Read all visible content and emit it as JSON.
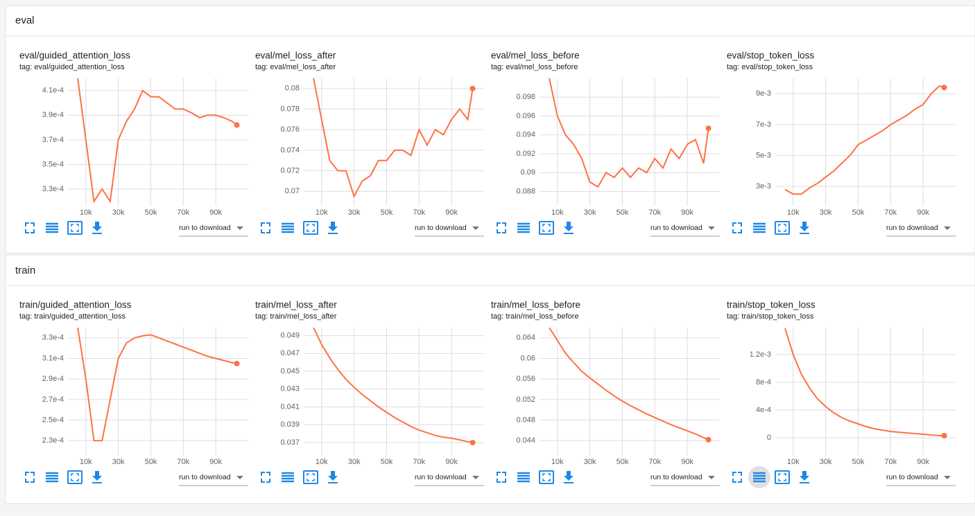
{
  "sections": [
    {
      "title": "eval"
    },
    {
      "title": "train"
    }
  ],
  "download_label": "run to download",
  "chart_data": [
    {
      "type": "line",
      "title": "eval/guided_attention_loss",
      "tag": "tag: eval/guided_attention_loss",
      "color": "#ff7043",
      "grid": true,
      "x": [
        5000,
        10000,
        15000,
        20000,
        25000,
        30000,
        35000,
        40000,
        45000,
        50000,
        55000,
        60000,
        65000,
        70000,
        75000,
        80000,
        85000,
        90000,
        95000,
        100000,
        103000
      ],
      "values": [
        0.00042,
        0.00037,
        0.00032,
        0.00033,
        0.00032,
        0.00037,
        0.000385,
        0.000395,
        0.00041,
        0.000405,
        0.000405,
        0.0004,
        0.000395,
        0.000395,
        0.000392,
        0.000388,
        0.00039,
        0.00039,
        0.000388,
        0.000385,
        0.000382
      ],
      "xlim": [
        -1000,
        110000
      ],
      "xticks": [
        {
          "value": 10000,
          "label": "10k"
        },
        {
          "value": 30000,
          "label": "30k"
        },
        {
          "value": 50000,
          "label": "50k"
        },
        {
          "value": 70000,
          "label": "70k"
        },
        {
          "value": 90000,
          "label": "90k"
        }
      ],
      "ylim": [
        0.0003165,
        0.00042
      ],
      "yticks": [
        {
          "value": 0.00033,
          "label": "3.3e-4"
        },
        {
          "value": 0.00035,
          "label": "3.5e-4"
        },
        {
          "value": 0.00037,
          "label": "3.7e-4"
        },
        {
          "value": 0.00039,
          "label": "3.9e-4"
        },
        {
          "value": 0.00041,
          "label": "4.1e-4"
        }
      ]
    },
    {
      "type": "line",
      "title": "eval/mel_loss_after",
      "tag": "tag: eval/mel_loss_after",
      "color": "#ff7043",
      "grid": true,
      "x": [
        5000,
        10000,
        15000,
        20000,
        25000,
        30000,
        35000,
        40000,
        45000,
        50000,
        55000,
        60000,
        65000,
        70000,
        75000,
        80000,
        85000,
        90000,
        95000,
        100000,
        103000
      ],
      "values": [
        0.081,
        0.077,
        0.073,
        0.072,
        0.072,
        0.0695,
        0.071,
        0.0715,
        0.073,
        0.073,
        0.074,
        0.074,
        0.0735,
        0.076,
        0.0745,
        0.076,
        0.0755,
        0.077,
        0.078,
        0.077,
        0.08
      ],
      "xlim": [
        -1000,
        110000
      ],
      "xticks": [
        {
          "value": 10000,
          "label": "10k"
        },
        {
          "value": 30000,
          "label": "30k"
        },
        {
          "value": 50000,
          "label": "50k"
        },
        {
          "value": 70000,
          "label": "70k"
        },
        {
          "value": 90000,
          "label": "90k"
        }
      ],
      "ylim": [
        0.0686,
        0.081
      ],
      "yticks": [
        0.07,
        0.072,
        0.074,
        0.076,
        0.078,
        0.08
      ]
    },
    {
      "type": "line",
      "title": "eval/mel_loss_before",
      "tag": "tag: eval/mel_loss_before",
      "color": "#ff7043",
      "grid": true,
      "x": [
        5000,
        10000,
        15000,
        20000,
        25000,
        30000,
        35000,
        40000,
        45000,
        50000,
        55000,
        60000,
        65000,
        70000,
        75000,
        80000,
        85000,
        90000,
        95000,
        100000,
        103000
      ],
      "values": [
        0.1,
        0.096,
        0.094,
        0.093,
        0.0915,
        0.089,
        0.0885,
        0.09,
        0.0895,
        0.0905,
        0.0895,
        0.0905,
        0.09,
        0.0915,
        0.0905,
        0.0925,
        0.0915,
        0.093,
        0.0935,
        0.091,
        0.0947
      ],
      "xlim": [
        -1000,
        110000
      ],
      "xticks": [
        {
          "value": 10000,
          "label": "10k"
        },
        {
          "value": 30000,
          "label": "30k"
        },
        {
          "value": 50000,
          "label": "50k"
        },
        {
          "value": 70000,
          "label": "70k"
        },
        {
          "value": 90000,
          "label": "90k"
        }
      ],
      "ylim": [
        0.0865,
        0.1
      ],
      "yticks": [
        {
          "value": 0.088,
          "label": "0.088"
        },
        {
          "value": 0.09,
          "label": "0.09"
        },
        {
          "value": 0.092,
          "label": "0.092"
        },
        {
          "value": 0.094,
          "label": "0.094"
        },
        {
          "value": 0.096,
          "label": "0.096"
        },
        {
          "value": 0.098,
          "label": "0.098"
        }
      ]
    },
    {
      "type": "line",
      "title": "eval/stop_token_loss",
      "tag": "tag: eval/stop_token_loss",
      "color": "#ff7043",
      "grid": true,
      "x": [
        5000,
        10000,
        15000,
        20000,
        25000,
        30000,
        35000,
        40000,
        45000,
        50000,
        55000,
        60000,
        65000,
        70000,
        75000,
        80000,
        85000,
        90000,
        95000,
        100000,
        103000
      ],
      "values": [
        0.0028,
        0.0025,
        0.0025,
        0.0029,
        0.0032,
        0.0036,
        0.004,
        0.0045,
        0.005,
        0.0057,
        0.006,
        0.0063,
        0.0066,
        0.007,
        0.0073,
        0.0076,
        0.008,
        0.0083,
        0.009,
        0.0095,
        0.0094
      ],
      "xlim": [
        -1000,
        110000
      ],
      "xticks": [
        {
          "value": 10000,
          "label": "10k"
        },
        {
          "value": 30000,
          "label": "30k"
        },
        {
          "value": 50000,
          "label": "50k"
        },
        {
          "value": 70000,
          "label": "70k"
        },
        {
          "value": 90000,
          "label": "90k"
        }
      ],
      "ylim": [
        0.00175,
        0.01
      ],
      "yticks": [
        {
          "value": 0.003,
          "label": "3e-3"
        },
        {
          "value": 0.005,
          "label": "5e-3"
        },
        {
          "value": 0.007,
          "label": "7e-3"
        },
        {
          "value": 0.009,
          "label": "9e-3"
        }
      ]
    },
    {
      "type": "line",
      "title": "train/guided_attention_loss",
      "tag": "tag: train/guided_attention_loss",
      "color": "#ff7043",
      "grid": true,
      "x": [
        5000,
        10000,
        15000,
        20000,
        25000,
        30000,
        35000,
        40000,
        45000,
        50000,
        55000,
        60000,
        65000,
        70000,
        75000,
        80000,
        85000,
        90000,
        95000,
        100000,
        103000
      ],
      "values": [
        0.00034,
        0.00029,
        0.00023,
        0.00023,
        0.00027,
        0.00031,
        0.000325,
        0.00033,
        0.000332,
        0.000333,
        0.00033,
        0.000327,
        0.000324,
        0.000321,
        0.000318,
        0.000315,
        0.000312,
        0.00031,
        0.000308,
        0.000306,
        0.000305
      ],
      "xlim": [
        -1000,
        110000
      ],
      "xticks": [
        {
          "value": 10000,
          "label": "10k"
        },
        {
          "value": 30000,
          "label": "30k"
        },
        {
          "value": 50000,
          "label": "50k"
        },
        {
          "value": 70000,
          "label": "70k"
        },
        {
          "value": 90000,
          "label": "90k"
        }
      ],
      "ylim": [
        0.000216,
        0.00034
      ],
      "yticks": [
        {
          "value": 0.00023,
          "label": "2.3e-4"
        },
        {
          "value": 0.00025,
          "label": "2.5e-4"
        },
        {
          "value": 0.00027,
          "label": "2.7e-4"
        },
        {
          "value": 0.00029,
          "label": "2.9e-4"
        },
        {
          "value": 0.00031,
          "label": "3.1e-4"
        },
        {
          "value": 0.00033,
          "label": "3.3e-4"
        }
      ]
    },
    {
      "type": "line",
      "title": "train/mel_loss_after",
      "tag": "tag: train/mel_loss_after",
      "color": "#ff7043",
      "grid": true,
      "x": [
        5000,
        10000,
        15000,
        20000,
        25000,
        30000,
        35000,
        40000,
        45000,
        50000,
        55000,
        60000,
        65000,
        70000,
        75000,
        80000,
        85000,
        90000,
        95000,
        100000,
        103000
      ],
      "values": [
        0.0499,
        0.048,
        0.0465,
        0.0452,
        0.0441,
        0.0432,
        0.0424,
        0.0417,
        0.041,
        0.0404,
        0.0398,
        0.0393,
        0.0388,
        0.0384,
        0.0381,
        0.0378,
        0.0376,
        0.0375,
        0.0373,
        0.0371,
        0.037
      ],
      "xlim": [
        -1000,
        110000
      ],
      "xticks": [
        {
          "value": 10000,
          "label": "10k"
        },
        {
          "value": 30000,
          "label": "30k"
        },
        {
          "value": 50000,
          "label": "50k"
        },
        {
          "value": 70000,
          "label": "70k"
        },
        {
          "value": 90000,
          "label": "90k"
        }
      ],
      "ylim": [
        0.0356,
        0.0499
      ],
      "yticks": [
        0.037,
        0.039,
        0.041,
        0.043,
        0.045,
        0.047,
        0.049
      ]
    },
    {
      "type": "line",
      "title": "train/mel_loss_before",
      "tag": "tag: train/mel_loss_before",
      "color": "#ff7043",
      "grid": true,
      "x": [
        5000,
        10000,
        15000,
        20000,
        25000,
        30000,
        35000,
        40000,
        45000,
        50000,
        55000,
        60000,
        65000,
        70000,
        75000,
        80000,
        85000,
        90000,
        95000,
        100000,
        103000
      ],
      "values": [
        0.066,
        0.0635,
        0.061,
        0.0592,
        0.0575,
        0.0562,
        0.055,
        0.0538,
        0.0527,
        0.0517,
        0.0508,
        0.05,
        0.0492,
        0.0485,
        0.0478,
        0.0471,
        0.0465,
        0.0459,
        0.0453,
        0.0446,
        0.0442
      ],
      "xlim": [
        -1000,
        110000
      ],
      "xticks": [
        {
          "value": 10000,
          "label": "10k"
        },
        {
          "value": 30000,
          "label": "30k"
        },
        {
          "value": 50000,
          "label": "50k"
        },
        {
          "value": 70000,
          "label": "70k"
        },
        {
          "value": 90000,
          "label": "90k"
        }
      ],
      "ylim": [
        0.0412,
        0.066
      ],
      "yticks": [
        {
          "value": 0.044,
          "label": "0.044"
        },
        {
          "value": 0.048,
          "label": "0.048"
        },
        {
          "value": 0.052,
          "label": "0.052"
        },
        {
          "value": 0.056,
          "label": "0.056"
        },
        {
          "value": 0.06,
          "label": "0.06"
        },
        {
          "value": 0.064,
          "label": "0.064"
        }
      ]
    },
    {
      "type": "line",
      "title": "train/stop_token_loss",
      "tag": "tag: train/stop_token_loss",
      "color": "#ff7043",
      "grid": true,
      "x": [
        5000,
        10000,
        15000,
        20000,
        25000,
        30000,
        35000,
        40000,
        45000,
        50000,
        55000,
        60000,
        65000,
        70000,
        75000,
        80000,
        85000,
        90000,
        95000,
        100000,
        103000
      ],
      "values": [
        0.00158,
        0.0012,
        0.00092,
        0.00072,
        0.00056,
        0.00045,
        0.00036,
        0.00029,
        0.00024,
        0.0002,
        0.00016,
        0.00013,
        0.00011,
        9e-05,
        8e-05,
        7e-05,
        6e-05,
        5e-05,
        4e-05,
        3e-05,
        3e-05
      ],
      "xlim": [
        -1000,
        110000
      ],
      "xticks": [
        {
          "value": 10000,
          "label": "10k"
        },
        {
          "value": 30000,
          "label": "30k"
        },
        {
          "value": 50000,
          "label": "50k"
        },
        {
          "value": 70000,
          "label": "70k"
        },
        {
          "value": 90000,
          "label": "90k"
        }
      ],
      "ylim": [
        -0.00025,
        0.00159
      ],
      "yticks": [
        0,
        {
          "value": 0.0004,
          "label": "4e-4"
        },
        {
          "value": 0.0008,
          "label": "8e-4"
        },
        {
          "value": 0.0012,
          "label": "1.2e-3"
        }
      ]
    }
  ]
}
